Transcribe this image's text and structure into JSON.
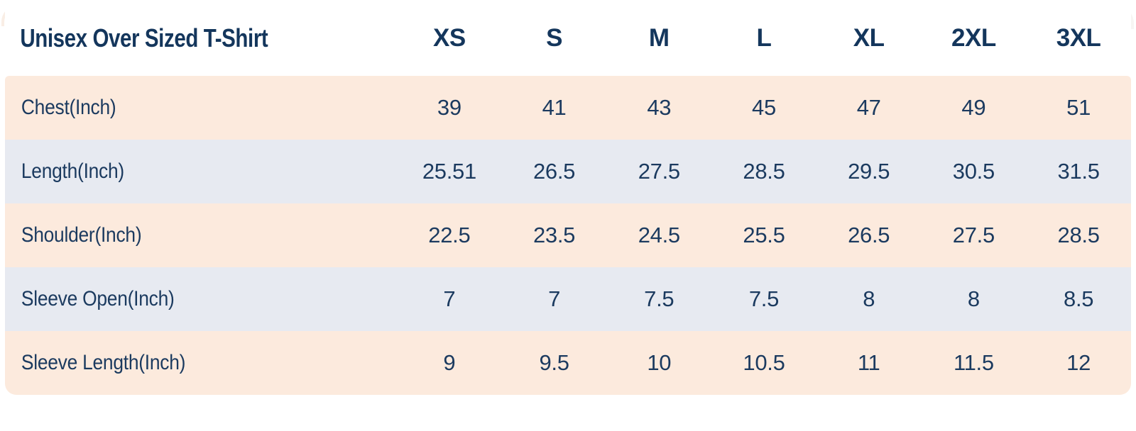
{
  "card": {
    "colors": {
      "background": "#ffffff",
      "row_peach": "#fceadd",
      "row_blue_gray": "#e7eaf1",
      "text_navy": "#17375e"
    }
  },
  "chart_data": {
    "type": "table",
    "title": "Unisex Over Sized T-Shirt",
    "columns": [
      "XS",
      "S",
      "M",
      "L",
      "XL",
      "2XL",
      "3XL"
    ],
    "rows": [
      {
        "label": "Chest(Inch)",
        "values": [
          "39",
          "41",
          "43",
          "45",
          "47",
          "49",
          "51"
        ]
      },
      {
        "label": "Length(Inch)",
        "values": [
          "25.51",
          "26.5",
          "27.5",
          "28.5",
          "29.5",
          "30.5",
          "31.5"
        ]
      },
      {
        "label": "Shoulder(Inch)",
        "values": [
          "22.5",
          "23.5",
          "24.5",
          "25.5",
          "26.5",
          "27.5",
          "28.5"
        ]
      },
      {
        "label": "Sleeve Open(Inch)",
        "values": [
          "7",
          "7",
          "7.5",
          "7.5",
          "8",
          "8",
          "8.5"
        ]
      },
      {
        "label": "Sleeve Length(Inch)",
        "values": [
          "9",
          "9.5",
          "10",
          "10.5",
          "11",
          "11.5",
          "12"
        ]
      }
    ],
    "layout": {
      "grid": false,
      "stripe_order": [
        "peach",
        "blue",
        "peach",
        "blue",
        "peach"
      ],
      "header_row_background": "white"
    }
  }
}
